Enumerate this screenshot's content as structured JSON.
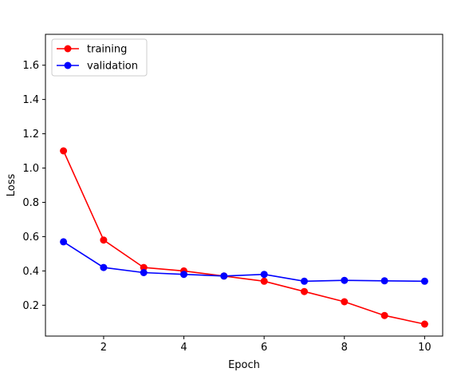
{
  "chart_data": {
    "type": "line",
    "title": "",
    "xlabel": "Epoch",
    "ylabel": "Loss",
    "x": [
      1,
      2,
      3,
      4,
      5,
      6,
      7,
      8,
      9,
      10
    ],
    "xlim": [
      0.55,
      10.45
    ],
    "ylim": [
      0.02,
      1.78
    ],
    "xticks": [
      2,
      4,
      6,
      8,
      10
    ],
    "yticks": [
      0.2,
      0.4,
      0.6,
      0.8,
      1.0,
      1.2,
      1.4,
      1.6
    ],
    "xtick_labels": [
      "2",
      "4",
      "6",
      "8",
      "10"
    ],
    "ytick_labels": [
      "0.2",
      "0.4",
      "0.6",
      "0.8",
      "1.0",
      "1.2",
      "1.4",
      "1.6"
    ],
    "grid": false,
    "legend": "top-left",
    "series": [
      {
        "name": "training",
        "color": "#ff0000",
        "values": [
          1.1,
          0.58,
          0.42,
          0.4,
          0.37,
          0.34,
          0.28,
          0.22,
          0.14,
          0.09
        ]
      },
      {
        "name": "validation",
        "color": "#0000ff",
        "values": [
          0.57,
          0.42,
          0.39,
          0.38,
          0.37,
          0.38,
          0.34,
          0.345,
          0.342,
          0.34
        ]
      }
    ]
  }
}
